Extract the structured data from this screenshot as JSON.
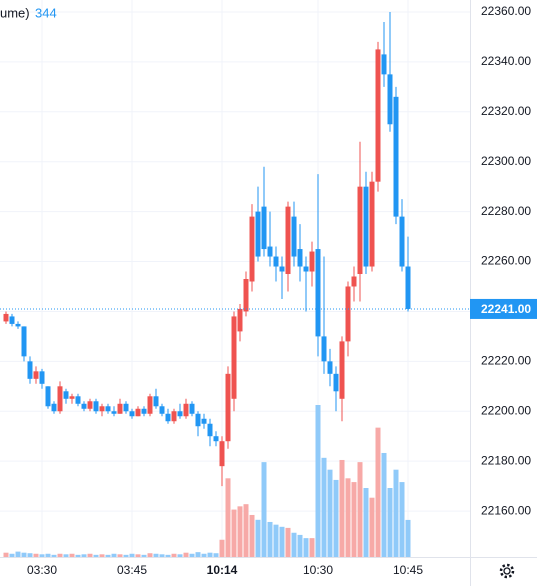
{
  "chart_data": {
    "type": "candlestick",
    "legend_label": "ume)",
    "categories": [
      null,
      null,
      null,
      null,
      null,
      null,
      "03:30",
      null,
      null,
      null,
      null,
      null,
      null,
      null,
      null,
      null,
      null,
      null,
      null,
      null,
      null,
      "03:45",
      null,
      null,
      null,
      null,
      null,
      null,
      null,
      null,
      null,
      null,
      null,
      null,
      null,
      null,
      "10:14",
      null,
      null,
      null,
      null,
      null,
      null,
      null,
      null,
      null,
      null,
      null,
      null,
      null,
      null,
      null,
      "10:30",
      null,
      null,
      null,
      null,
      null,
      null,
      null,
      null,
      null,
      null,
      null,
      null,
      null,
      null,
      "10:45"
    ],
    "open": [
      22236,
      22238,
      22235,
      22234,
      22220,
      22213,
      22216,
      22210,
      22203,
      22200,
      22208,
      22205,
      22206,
      22203,
      22201,
      22204,
      22200,
      22202,
      22200,
      22199,
      22203,
      22200,
      22198,
      22201,
      22199,
      22206,
      22202,
      22199,
      22196,
      22200,
      22198,
      22203,
      22199,
      22197,
      22195,
      22190,
      22178,
      22188,
      22205,
      22232,
      22240,
      22252,
      22280,
      22282,
      22266,
      22262,
      22258,
      22255,
      22278,
      22265,
      22258,
      22256,
      22265,
      22230,
      22220,
      22215,
      22205,
      22228,
      22250,
      22255,
      22290,
      22258,
      22292,
      22343,
      22335,
      22326,
      22278,
      22258
    ],
    "high": [
      22240,
      22239,
      22236,
      22234,
      22222,
      22218,
      22217,
      22210,
      22204,
      22212,
      22209,
      22207,
      22207,
      22204,
      22205,
      22205,
      22203,
      22203,
      22202,
      22205,
      22204,
      22201,
      22202,
      22202,
      22207,
      22209,
      22203,
      22201,
      22201,
      22203,
      22205,
      22204,
      22200,
      22199,
      22197,
      22192,
      22190,
      22218,
      22240,
      22243,
      22256,
      22283,
      22290,
      22298,
      22280,
      22266,
      22262,
      22284,
      22284,
      22275,
      22262,
      22268,
      22295,
      22262,
      22225,
      22218,
      22230,
      22252,
      22258,
      22308,
      22296,
      22296,
      22348,
      22356,
      22360,
      22330,
      22285,
      22270
    ],
    "low": [
      22235,
      22234,
      22233,
      22220,
      22211,
      22211,
      22209,
      22201,
      22199,
      22199,
      22203,
      22203,
      22202,
      22200,
      22200,
      22199,
      22198,
      22199,
      22198,
      22199,
      22199,
      22197,
      22198,
      22198,
      22198,
      22201,
      22198,
      22195,
      22195,
      22197,
      22197,
      22198,
      22190,
      22193,
      22186,
      22186,
      22170,
      22185,
      22200,
      22228,
      22238,
      22248,
      22260,
      22262,
      22258,
      22252,
      22245,
      22248,
      22258,
      22252,
      22240,
      22250,
      22222,
      22215,
      22210,
      22200,
      22196,
      22222,
      22244,
      22244,
      22255,
      22256,
      22288,
      22330,
      22312,
      22275,
      22256,
      22240
    ],
    "close": [
      22239,
      22235,
      22234,
      22222,
      22213,
      22216,
      22211,
      22202,
      22200,
      22210,
      22205,
      22206,
      22203,
      22201,
      22204,
      22200,
      22202,
      22200,
      22199,
      22203,
      22200,
      22198,
      22201,
      22199,
      22206,
      22202,
      22199,
      22196,
      22200,
      22198,
      22203,
      22199,
      22194,
      22195,
      22190,
      22188,
      22188,
      22215,
      22238,
      22241,
      22253,
      22278,
      22262,
      22265,
      22262,
      22258,
      22256,
      22282,
      22262,
      22258,
      22256,
      22264,
      22230,
      22220,
      22215,
      22208,
      22228,
      22250,
      22254,
      22290,
      22258,
      22292,
      22345,
      22335,
      22315,
      22278,
      22258,
      22241
    ],
    "volume": [
      40,
      30,
      50,
      40,
      35,
      30,
      25,
      30,
      20,
      30,
      25,
      30,
      20,
      25,
      30,
      20,
      25,
      20,
      30,
      25,
      20,
      30,
      25,
      20,
      35,
      30,
      25,
      20,
      30,
      25,
      40,
      30,
      45,
      30,
      40,
      35,
      160,
      730,
      440,
      470,
      490,
      390,
      345,
      880,
      325,
      300,
      280,
      270,
      225,
      205,
      175,
      175,
      1410,
      920,
      810,
      715,
      900,
      730,
      695,
      880,
      640,
      550,
      1200,
      965,
      640,
      810,
      695,
      344
    ],
    "last_label": "22241.00",
    "up_color": "#ef5350",
    "down_color": "#2196f3",
    "volume_up_color": "#f7a9a7",
    "volume_down_color": "#90caf9",
    "ylim": [
      22141.6,
      22364.8
    ],
    "yticks": [
      {
        "value": 22160,
        "label": "22160.00"
      },
      {
        "value": 22180,
        "label": "22180.00"
      },
      {
        "value": 22200,
        "label": "22200.00"
      },
      {
        "value": 22220,
        "label": "22220.00"
      },
      {
        "value": 22240,
        "label": "22240.00"
      },
      {
        "value": 22260,
        "label": "22260.00"
      },
      {
        "value": 22280,
        "label": "22280.00"
      },
      {
        "value": 22300,
        "label": "22300.00"
      },
      {
        "value": 22320,
        "label": "22320.00"
      },
      {
        "value": 22340,
        "label": "22340.00"
      },
      {
        "value": 22360,
        "label": "22360.00"
      }
    ],
    "grid": true
  }
}
